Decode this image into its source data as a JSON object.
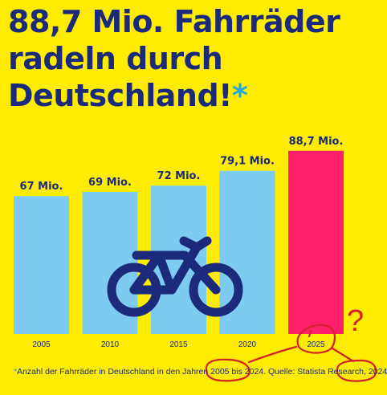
{
  "headline": {
    "line1": "88,7 Mio. Fahrräder",
    "line2": "radeln durch",
    "line3": "Deutschland!",
    "asterisk": "*"
  },
  "chart_data": {
    "type": "bar",
    "categories": [
      "2005",
      "2010",
      "2015",
      "2020",
      "2025"
    ],
    "values": [
      67,
      69,
      72,
      79.1,
      88.7
    ],
    "value_labels": [
      "67 Mio.",
      "69 Mio.",
      "72 Mio.",
      "79,1 Mio.",
      "88,7 Mio."
    ],
    "unit": "Mio.",
    "ylim": [
      0,
      100
    ],
    "grid": false,
    "title": "",
    "xlabel": "",
    "ylabel": "",
    "highlight_index": 4
  },
  "footnote": {
    "asterisk": "*",
    "text": "Anzahl der Fahrräder in Deutschland in den Jahren 2005 bis 2024. Quelle: Statista Research, 2024"
  },
  "annotation": {
    "question_mark": "?"
  },
  "colors": {
    "background": "#ffec00",
    "bar": "#7ecbf2",
    "bar_highlight": "#ff1f6b",
    "text": "#1b2a7a",
    "accent": "#22a7e0",
    "bicycle": "#1b2a7a",
    "scribble": "#d2232a"
  },
  "icons": {
    "bicycle": "bicycle-icon"
  }
}
